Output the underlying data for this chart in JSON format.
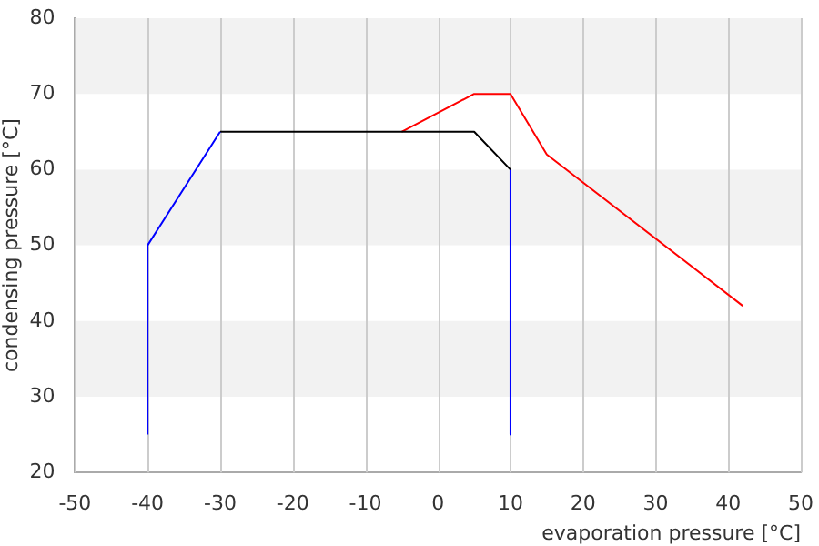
{
  "chart_data": {
    "type": "line",
    "xlabel": "evaporation pressure [°C]",
    "ylabel": "condensing pressure [°C]",
    "xlim": [
      -50,
      50
    ],
    "xticks": [
      -50,
      -40,
      -30,
      -20,
      -10,
      0,
      10,
      20,
      30,
      40,
      50
    ],
    "ylim": [
      20,
      80
    ],
    "yticks": [
      20,
      30,
      40,
      50,
      60,
      70,
      80
    ],
    "grid": "x",
    "legend": false,
    "marker": "none",
    "line_style": "solid",
    "bands": [
      {
        "axis": "y",
        "from": 30,
        "to": 40,
        "color": "#f2f2f2"
      },
      {
        "axis": "y",
        "from": 50,
        "to": 60,
        "color": "#f2f2f2"
      },
      {
        "axis": "y",
        "from": 70,
        "to": 80,
        "color": "#f2f2f2"
      }
    ],
    "series": [
      {
        "color": "#0000ff",
        "x": [
          -40,
          -40,
          -30
        ],
        "values": [
          25,
          50,
          65
        ]
      },
      {
        "color": "#000000",
        "x": [
          -30,
          5,
          10
        ],
        "values": [
          65,
          65,
          60
        ]
      },
      {
        "color": "#0000ff",
        "x": [
          10,
          10
        ],
        "values": [
          60,
          25
        ]
      },
      {
        "color": "#ff0000",
        "x": [
          -5,
          5,
          10,
          15,
          42
        ],
        "values": [
          65,
          70,
          70,
          62,
          42
        ]
      }
    ]
  }
}
